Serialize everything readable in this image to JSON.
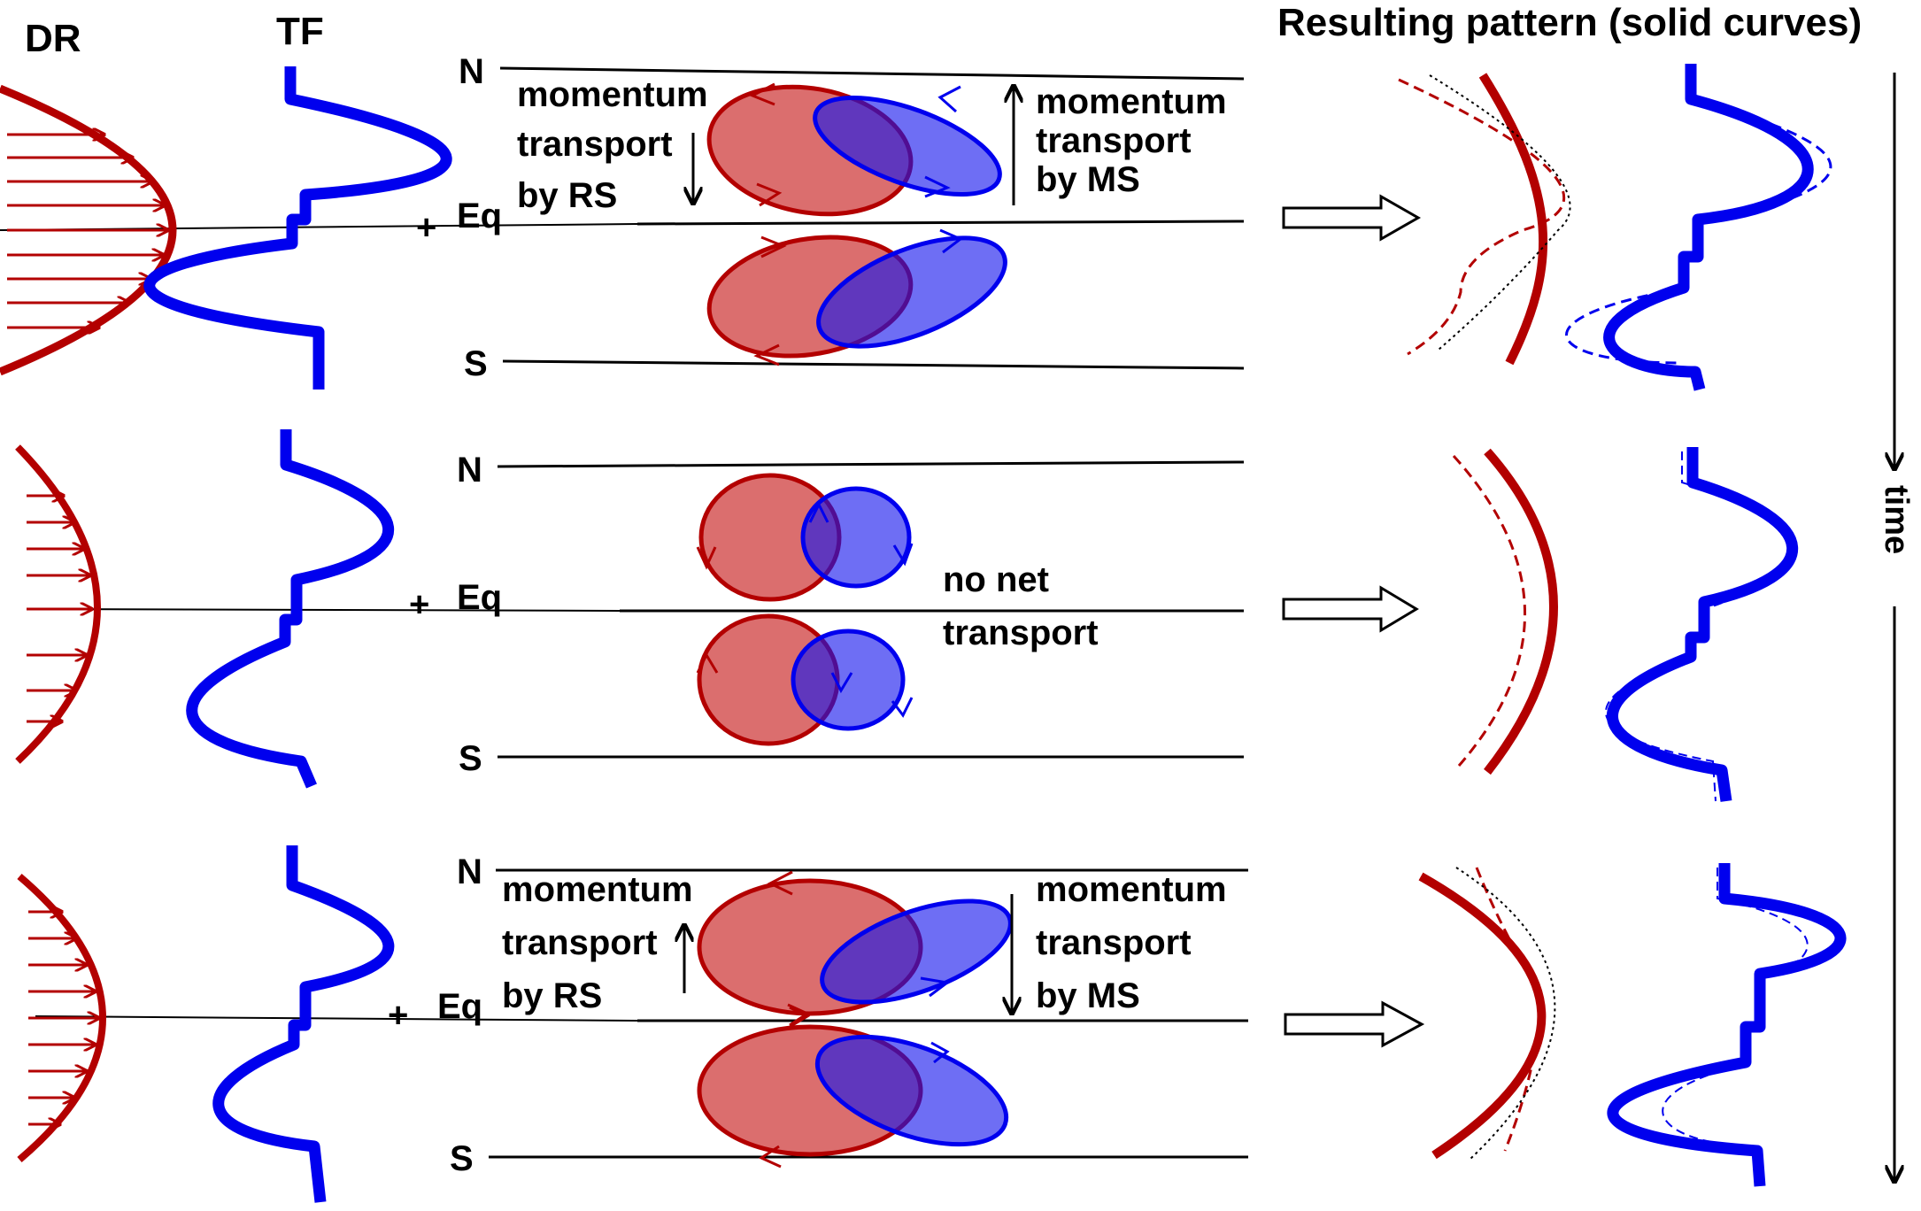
{
  "headers": {
    "dr": "DR",
    "tf": "TF",
    "result": "Resulting pattern (solid curves)"
  },
  "hemisphere_labels": {
    "north": "N",
    "equator": "Eq",
    "south": "S"
  },
  "time_label": "time",
  "panels": [
    {
      "id": "top",
      "left_text": [
        "momentum",
        "transport",
        "by RS"
      ],
      "right_text": [
        "momentum",
        "transport",
        "by MS"
      ],
      "rs_arrow": "down",
      "ms_arrow": "up"
    },
    {
      "id": "middle",
      "center_text": [
        "no net",
        "transport"
      ]
    },
    {
      "id": "bottom",
      "left_text": [
        "momentum",
        "transport",
        "by RS"
      ],
      "right_text": [
        "momentum",
        "transport",
        "by MS"
      ],
      "rs_arrow": "up",
      "ms_arrow": "down"
    }
  ],
  "colors": {
    "red": "#b30000",
    "red_fill": "#d96666",
    "blue": "#0000ee",
    "blue_fill": "#5a5aff"
  }
}
